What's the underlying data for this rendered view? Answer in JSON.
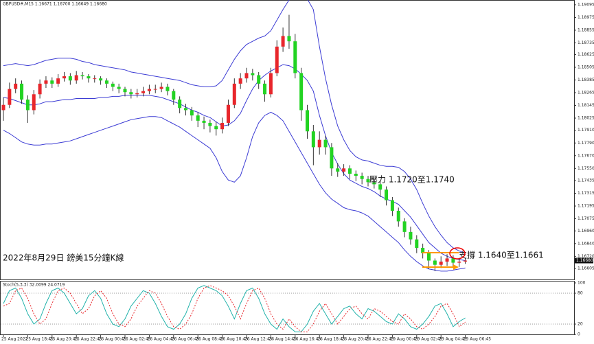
{
  "header": "GBPUSD#,M15 1.16671 1.16700 1.16649 1.16680",
  "chart_data": [
    {
      "type": "candlestick",
      "up_color": "#e8262b",
      "down_color": "#22d322",
      "wick_color": "#333333",
      "categories": [
        "25 Aug 2022",
        null,
        null,
        null,
        "25 Aug 18:45",
        null,
        null,
        null,
        "25 Aug 20:45",
        null,
        null,
        null,
        "25 Aug 22:45",
        null,
        null,
        null,
        "26 Aug 00:45",
        null,
        null,
        null,
        "26 Aug 02:45",
        null,
        null,
        null,
        "26 Aug 04:45",
        null,
        null,
        null,
        "26 Aug 06:45",
        null,
        null,
        null,
        "26 Aug 08:45",
        null,
        null,
        null,
        "26 Aug 10:45",
        null,
        null,
        null,
        "26 Aug 12:45",
        null,
        null,
        null,
        "26 Aug 14:45",
        null,
        null,
        null,
        "26 Aug 16:45",
        null,
        null,
        null,
        "26 Aug 18:45",
        null,
        null,
        null,
        "26 Aug 20:45",
        null,
        null,
        null,
        "26 Aug 22:45",
        null,
        null,
        null,
        "29 Aug 00:45",
        null,
        null,
        null,
        "29 Aug 02:45",
        null,
        null,
        null,
        "29 Aug 04:45",
        null,
        null,
        null,
        "29 Aug 06:45"
      ],
      "ohlc": [
        [
          1.181,
          1.1822,
          1.18,
          1.1815
        ],
        [
          1.1815,
          1.1836,
          1.1812,
          1.183
        ],
        [
          1.183,
          1.184,
          1.1826,
          1.1835
        ],
        [
          1.1835,
          1.1838,
          1.1816,
          1.182
        ],
        [
          1.182,
          1.1824,
          1.1798,
          1.181
        ],
        [
          1.181,
          1.1829,
          1.1806,
          1.1825
        ],
        [
          1.1825,
          1.1839,
          1.1821,
          1.1835
        ],
        [
          1.1835,
          1.1842,
          1.1831,
          1.1838
        ],
        [
          1.1838,
          1.1841,
          1.1831,
          1.1835
        ],
        [
          1.1835,
          1.1844,
          1.1832,
          1.184
        ],
        [
          1.184,
          1.1846,
          1.1837,
          1.1842
        ],
        [
          1.1842,
          1.1845,
          1.1834,
          1.1838
        ],
        [
          1.1838,
          1.1847,
          1.1835,
          1.1843
        ],
        [
          1.1843,
          1.1846,
          1.1839,
          1.1842
        ],
        [
          1.1842,
          1.1844,
          1.1836,
          1.184
        ],
        [
          1.184,
          1.1843,
          1.1836,
          1.184
        ],
        [
          1.184,
          1.1842,
          1.1834,
          1.1838
        ],
        [
          1.1838,
          1.184,
          1.1831,
          1.1835
        ],
        [
          1.1835,
          1.1837,
          1.1828,
          1.1832
        ],
        [
          1.1832,
          1.1835,
          1.1826,
          1.183
        ],
        [
          1.183,
          1.1832,
          1.1823,
          1.1827
        ],
        [
          1.1827,
          1.183,
          1.1821,
          1.1825
        ],
        [
          1.1825,
          1.183,
          1.1822,
          1.1826
        ],
        [
          1.1826,
          1.1832,
          1.1823,
          1.1828
        ],
        [
          1.1828,
          1.1834,
          1.1825,
          1.183
        ],
        [
          1.183,
          1.1834,
          1.1826,
          1.183
        ],
        [
          1.183,
          1.1836,
          1.1827,
          1.1832
        ],
        [
          1.1832,
          1.1835,
          1.1824,
          1.1828
        ],
        [
          1.1828,
          1.183,
          1.1815,
          1.182
        ],
        [
          1.182,
          1.1823,
          1.1807,
          1.1812
        ],
        [
          1.1812,
          1.1816,
          1.1805,
          1.181
        ],
        [
          1.181,
          1.1813,
          1.18,
          1.1805
        ],
        [
          1.1805,
          1.1808,
          1.1794,
          1.18
        ],
        [
          1.18,
          1.1804,
          1.1792,
          1.1798
        ],
        [
          1.1798,
          1.1801,
          1.1789,
          1.1795
        ],
        [
          1.1795,
          1.1799,
          1.1786,
          1.1792
        ],
        [
          1.1792,
          1.1803,
          1.1788,
          1.1798
        ],
        [
          1.1798,
          1.182,
          1.1795,
          1.1815
        ],
        [
          1.1815,
          1.184,
          1.1812,
          1.1835
        ],
        [
          1.1835,
          1.1845,
          1.183,
          1.184
        ],
        [
          1.184,
          1.185,
          1.1836,
          1.1845
        ],
        [
          1.1845,
          1.1849,
          1.1838,
          1.1843
        ],
        [
          1.1843,
          1.1846,
          1.183,
          1.1835
        ],
        [
          1.1835,
          1.1838,
          1.1818,
          1.1825
        ],
        [
          1.1825,
          1.185,
          1.1822,
          1.1845
        ],
        [
          1.1845,
          1.1876,
          1.1842,
          1.187
        ],
        [
          1.187,
          1.1888,
          1.1865,
          1.188
        ],
        [
          1.188,
          1.19,
          1.1868,
          1.1875
        ],
        [
          1.1875,
          1.1882,
          1.184,
          1.1845
        ],
        [
          1.1845,
          1.185,
          1.18,
          1.181
        ],
        [
          1.181,
          1.1815,
          1.1783,
          1.179
        ],
        [
          1.179,
          1.1796,
          1.1758,
          1.1775
        ],
        [
          1.1775,
          1.179,
          1.1768,
          1.1782
        ],
        [
          1.1782,
          1.1786,
          1.1768,
          1.1775
        ],
        [
          1.1775,
          1.1779,
          1.1748,
          1.1755
        ],
        [
          1.1755,
          1.176,
          1.1747,
          1.1752
        ],
        [
          1.1752,
          1.1759,
          1.1748,
          1.1755
        ],
        [
          1.1755,
          1.1758,
          1.1745,
          1.175
        ],
        [
          1.175,
          1.1753,
          1.1743,
          1.1748
        ],
        [
          1.1748,
          1.1751,
          1.174,
          1.1745
        ],
        [
          1.1745,
          1.1748,
          1.1738,
          1.1742
        ],
        [
          1.1742,
          1.1745,
          1.1736,
          1.174
        ],
        [
          1.174,
          1.1743,
          1.1728,
          1.1735
        ],
        [
          1.1735,
          1.1738,
          1.172,
          1.1725
        ],
        [
          1.1725,
          1.1728,
          1.171,
          1.1715
        ],
        [
          1.1715,
          1.1718,
          1.17,
          1.1705
        ],
        [
          1.1705,
          1.1708,
          1.169,
          1.1695
        ],
        [
          1.1695,
          1.17,
          1.1683,
          1.1688
        ],
        [
          1.1688,
          1.1692,
          1.1675,
          1.168
        ],
        [
          1.168,
          1.1684,
          1.167,
          1.1675
        ],
        [
          1.1675,
          1.1678,
          1.166,
          1.1668
        ],
        [
          1.1668,
          1.167,
          1.1658,
          1.1664
        ],
        [
          1.1664,
          1.1672,
          1.1661,
          1.1667
        ],
        [
          1.1667,
          1.1674,
          1.1663,
          1.167
        ],
        [
          1.167,
          1.1673,
          1.1662,
          1.1666
        ],
        [
          1.1666,
          1.167,
          1.1662,
          1.1667
        ],
        [
          1.16671,
          1.167,
          1.16649,
          1.1668
        ]
      ],
      "bands": [
        {
          "color": "#3b3bd4",
          "values": [
            1.1852,
            1.1853,
            1.1854,
            1.1853,
            1.1852,
            1.1853,
            1.1855,
            1.1857,
            1.1858,
            1.1859,
            1.1859,
            1.1859,
            1.1858,
            1.1856,
            1.1855,
            1.1853,
            1.1852,
            1.1851,
            1.185,
            1.1849,
            1.1848,
            1.1846,
            1.1845,
            1.1844,
            1.1843,
            1.1842,
            1.1841,
            1.184,
            1.1839,
            1.1838,
            1.1836,
            1.1834,
            1.1833,
            1.1832,
            1.1832,
            1.1833,
            1.1838,
            1.1848,
            1.1858,
            1.1866,
            1.1872,
            1.1875,
            1.1878,
            1.188,
            1.1885,
            1.1895,
            1.1905,
            1.1914,
            1.1918,
            1.1918,
            1.1915,
            1.1905,
            1.187,
            1.184,
            1.1815,
            1.1795,
            1.1782,
            1.1772,
            1.1766,
            1.1763,
            1.1762,
            1.176,
            1.1758,
            1.1757,
            1.1757,
            1.1756,
            1.1752,
            1.1745,
            1.1735,
            1.1722,
            1.171,
            1.17,
            1.1692,
            1.1685,
            1.168,
            1.1677,
            1.1675
          ]
        },
        {
          "color": "#3b3bd4",
          "values": [
            1.1822,
            1.1821,
            1.1819,
            1.1817,
            1.1815,
            1.1815,
            1.1816,
            1.1818,
            1.1818,
            1.1819,
            1.182,
            1.182,
            1.1821,
            1.1821,
            1.1821,
            1.1821,
            1.1822,
            1.1822,
            1.1823,
            1.1823,
            1.1824,
            1.1824,
            1.1824,
            1.1824,
            1.1824,
            1.1823,
            1.1822,
            1.182,
            1.1818,
            1.1816,
            1.1813,
            1.181,
            1.1808,
            1.1805,
            1.1803,
            1.1799,
            1.1795,
            1.1796,
            1.18,
            1.1807,
            1.1819,
            1.183,
            1.1838,
            1.1843,
            1.1847,
            1.185,
            1.1853,
            1.1852,
            1.1849,
            1.1844,
            1.1838,
            1.1828,
            1.1805,
            1.1786,
            1.177,
            1.1759,
            1.175,
            1.1744,
            1.1741,
            1.1738,
            1.1736,
            1.1733,
            1.1729,
            1.1726,
            1.1724,
            1.1721,
            1.1715,
            1.1709,
            1.1701,
            1.1693,
            1.1685,
            1.168,
            1.1675,
            1.1672,
            1.167,
            1.1669,
            1.1668
          ]
        },
        {
          "color": "#3b3bd4",
          "values": [
            1.1791,
            1.1788,
            1.1784,
            1.178,
            1.1778,
            1.1777,
            1.1777,
            1.1778,
            1.1778,
            1.1779,
            1.178,
            1.1781,
            1.1783,
            1.1785,
            1.1787,
            1.1789,
            1.1791,
            1.1793,
            1.1795,
            1.1797,
            1.1799,
            1.1801,
            1.1802,
            1.1803,
            1.1804,
            1.1804,
            1.1803,
            1.18,
            1.1797,
            1.1794,
            1.179,
            1.1786,
            1.1782,
            1.1778,
            1.1774,
            1.1765,
            1.1752,
            1.1744,
            1.1742,
            1.1748,
            1.1765,
            1.1785,
            1.1798,
            1.1805,
            1.1808,
            1.1805,
            1.18,
            1.179,
            1.178,
            1.177,
            1.176,
            1.175,
            1.174,
            1.1732,
            1.1726,
            1.1722,
            1.1718,
            1.1716,
            1.1715,
            1.1713,
            1.171,
            1.1705,
            1.17,
            1.1695,
            1.169,
            1.1685,
            1.1678,
            1.1672,
            1.1667,
            1.1663,
            1.166,
            1.1659,
            1.1658,
            1.1658,
            1.1659,
            1.166,
            1.1661
          ]
        }
      ],
      "ylim": [
        1.16573,
        1.19127
      ],
      "yticks": [
        1.19095,
        1.18975,
        1.18855,
        1.18735,
        1.18625,
        1.18505,
        1.18385,
        1.18265,
        1.18145,
        1.18025,
        {
          "value": 1.1791,
          "label": "1.17910"
        },
        {
          "value": 1.1779,
          "label": "1.17790"
        },
        {
          "value": 1.1767,
          "label": "1.17670"
        },
        {
          "value": 1.1755,
          "label": "1.17550"
        },
        1.17435,
        1.17315,
        1.17195,
        1.17075,
        {
          "value": 1.1696,
          "label": "1.16960"
        },
        {
          "value": 1.1684,
          "label": "1.16840"
        },
        {
          "value": 1.1672,
          "label": "1.16720"
        },
        1.16605
      ],
      "last_price_label": "1.16680",
      "annotations": [
        "壓力 1.1720至1.1740",
        "支撐 1.1640至1.1661",
        "2022年8月29日 鎊美15分鐘K線"
      ]
    },
    {
      "type": "line",
      "title": "Stoch(5,3,3) 32.0099 24.0719",
      "series": [
        {
          "color": "#20b2aa",
          "dashed": false,
          "values": [
            60,
            85,
            90,
            70,
            40,
            20,
            30,
            60,
            85,
            90,
            80,
            60,
            40,
            50,
            75,
            85,
            70,
            40,
            20,
            15,
            30,
            55,
            70,
            85,
            80,
            60,
            35,
            15,
            10,
            20,
            40,
            70,
            90,
            95,
            90,
            85,
            75,
            55,
            30,
            60,
            85,
            90,
            70,
            40,
            20,
            10,
            30,
            15,
            5,
            5,
            20,
            45,
            60,
            40,
            20,
            35,
            50,
            55,
            40,
            30,
            50,
            45,
            35,
            25,
            20,
            40,
            30,
            15,
            10,
            20,
            35,
            55,
            60,
            40,
            15,
            25,
            32
          ]
        },
        {
          "color": "#e8262b",
          "dashed": true,
          "values": [
            55,
            60,
            85,
            90,
            70,
            40,
            20,
            30,
            60,
            85,
            90,
            80,
            60,
            40,
            50,
            75,
            85,
            70,
            40,
            20,
            15,
            30,
            55,
            70,
            85,
            80,
            60,
            35,
            15,
            10,
            20,
            40,
            70,
            90,
            95,
            90,
            85,
            75,
            55,
            30,
            60,
            85,
            90,
            70,
            40,
            20,
            10,
            30,
            15,
            5,
            5,
            20,
            45,
            60,
            40,
            20,
            35,
            50,
            55,
            40,
            30,
            50,
            45,
            35,
            25,
            20,
            40,
            30,
            15,
            10,
            20,
            35,
            55,
            60,
            40,
            15,
            24
          ]
        }
      ],
      "ylim": [
        0,
        100
      ],
      "yticks": [
        100,
        80,
        20,
        0
      ],
      "levels": [
        80,
        20
      ]
    }
  ]
}
